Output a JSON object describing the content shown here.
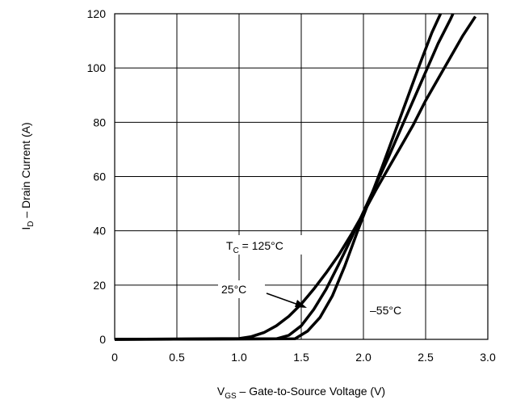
{
  "chart_data": {
    "type": "line",
    "xlabel": {
      "main": "V",
      "sub": "GS",
      "rest": "  –  Gate-to-Source Voltage (V)"
    },
    "ylabel": {
      "main": "I",
      "sub": "D",
      "rest": "  –  Drain Current (A)"
    },
    "xlim": [
      0,
      3.0
    ],
    "ylim": [
      0,
      120
    ],
    "xticks": [
      0,
      0.5,
      1.0,
      1.5,
      2.0,
      2.5,
      3.0
    ],
    "xtick_labels": [
      "0",
      "0.5",
      "1.0",
      "1.5",
      "2.0",
      "2.5",
      "3.0"
    ],
    "yticks": [
      0,
      20,
      40,
      60,
      80,
      100,
      120
    ],
    "ytick_labels": [
      "0",
      "20",
      "40",
      "60",
      "80",
      "100",
      "120"
    ],
    "grid": true,
    "series": [
      {
        "name": "T_C = 125°C",
        "x": [
          0,
          1.0,
          1.1,
          1.2,
          1.3,
          1.4,
          1.5,
          1.6,
          1.7,
          1.8,
          1.9,
          2.0,
          2.1,
          2.2,
          2.3,
          2.4,
          2.5,
          2.6,
          2.7,
          2.8,
          2.9
        ],
        "y": [
          0,
          0.3,
          1,
          2.5,
          5,
          8.5,
          13,
          18.5,
          24.5,
          31,
          38.5,
          46.5,
          55,
          63,
          71,
          79,
          88,
          96,
          104,
          112,
          119
        ]
      },
      {
        "name": "25°C",
        "x": [
          0,
          1.3,
          1.4,
          1.5,
          1.6,
          1.7,
          1.8,
          1.9,
          2.0,
          2.1,
          2.2,
          2.3,
          2.4,
          2.5,
          2.6,
          2.7,
          2.72
        ],
        "y": [
          0,
          0.2,
          1.5,
          5,
          11,
          18.5,
          27.5,
          37,
          47,
          57,
          67,
          77.5,
          88,
          98.5,
          109,
          118,
          120
        ]
      },
      {
        "name": "–55°C",
        "x": [
          0,
          1.45,
          1.55,
          1.65,
          1.75,
          1.85,
          1.95,
          2.05,
          2.15,
          2.25,
          2.35,
          2.45,
          2.55,
          2.62
        ],
        "y": [
          0,
          0.2,
          3,
          8,
          16,
          27,
          39.5,
          51.5,
          63.5,
          76,
          88.5,
          101,
          113,
          120
        ]
      }
    ],
    "annotations": {
      "tc": {
        "main": "T",
        "sub": "C",
        "rest": " = 125°C"
      },
      "mid": "25°C",
      "cold": "–55°C"
    }
  }
}
